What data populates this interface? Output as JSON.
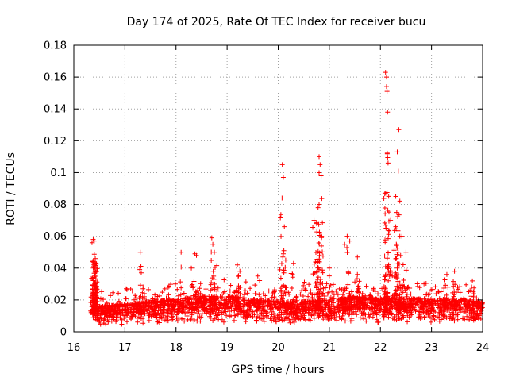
{
  "chart_data": {
    "type": "scatter",
    "title": "Day 174 of 2025, Rate Of TEC Index for receiver bucu",
    "xlabel": "GPS time / hours",
    "ylabel": "ROTI / TECUs",
    "xlim": [
      16,
      24
    ],
    "ylim": [
      0,
      0.18
    ],
    "xticks": [
      "16",
      "17",
      "18",
      "19",
      "20",
      "21",
      "22",
      "23",
      "24"
    ],
    "yticks": [
      "0",
      "0.02",
      "0.04",
      "0.06",
      "0.08",
      "0.1",
      "0.12",
      "0.14",
      "0.16",
      "0.18"
    ],
    "grid": true,
    "marker": "+",
    "color": "#ff0000",
    "series": [
      {
        "name": "ROTI",
        "baseline": [
          [
            16.35,
            0.012
          ],
          [
            16.5,
            0.01
          ],
          [
            17.0,
            0.011
          ],
          [
            17.5,
            0.012
          ],
          [
            18.0,
            0.013
          ],
          [
            18.5,
            0.014
          ],
          [
            19.0,
            0.014
          ],
          [
            19.5,
            0.013
          ],
          [
            20.0,
            0.012
          ],
          [
            20.5,
            0.012
          ],
          [
            21.0,
            0.013
          ],
          [
            21.5,
            0.014
          ],
          [
            22.0,
            0.013
          ],
          [
            22.5,
            0.013
          ],
          [
            23.0,
            0.013
          ],
          [
            23.5,
            0.013
          ],
          [
            24.0,
            0.012
          ]
        ],
        "spikes": [
          [
            16.38,
            0.058
          ],
          [
            16.4,
            0.057
          ],
          [
            16.42,
            0.046
          ],
          [
            16.38,
            0.04
          ],
          [
            16.41,
            0.035
          ],
          [
            17.3,
            0.05
          ],
          [
            17.32,
            0.037
          ],
          [
            18.1,
            0.05
          ],
          [
            18.3,
            0.04
          ],
          [
            18.37,
            0.049
          ],
          [
            18.4,
            0.048
          ],
          [
            18.7,
            0.059
          ],
          [
            18.72,
            0.055
          ],
          [
            18.75,
            0.05
          ],
          [
            19.2,
            0.042
          ],
          [
            19.25,
            0.038
          ],
          [
            19.6,
            0.035
          ],
          [
            20.08,
            0.105
          ],
          [
            20.1,
            0.097
          ],
          [
            20.12,
            0.066
          ],
          [
            20.1,
            0.049
          ],
          [
            20.3,
            0.043
          ],
          [
            20.7,
            0.07
          ],
          [
            20.75,
            0.068
          ],
          [
            20.78,
            0.078
          ],
          [
            20.8,
            0.08
          ],
          [
            20.8,
            0.11
          ],
          [
            20.82,
            0.105
          ],
          [
            20.8,
            0.1
          ],
          [
            20.84,
            0.098
          ],
          [
            20.85,
            0.06
          ],
          [
            21.0,
            0.04
          ],
          [
            21.3,
            0.055
          ],
          [
            21.35,
            0.06
          ],
          [
            21.4,
            0.057
          ],
          [
            21.55,
            0.047
          ],
          [
            22.1,
            0.163
          ],
          [
            22.12,
            0.16
          ],
          [
            22.12,
            0.154
          ],
          [
            22.13,
            0.151
          ],
          [
            22.14,
            0.138
          ],
          [
            22.15,
            0.106
          ],
          [
            22.2,
            0.07
          ],
          [
            22.3,
            0.085
          ],
          [
            22.33,
            0.113
          ],
          [
            22.35,
            0.101
          ],
          [
            22.36,
            0.127
          ],
          [
            22.32,
            0.075
          ],
          [
            22.3,
            0.066
          ],
          [
            22.38,
            0.06
          ],
          [
            22.42,
            0.06
          ],
          [
            22.5,
            0.05
          ],
          [
            23.3,
            0.036
          ],
          [
            23.45,
            0.038
          ],
          [
            23.8,
            0.032
          ]
        ]
      }
    ]
  }
}
